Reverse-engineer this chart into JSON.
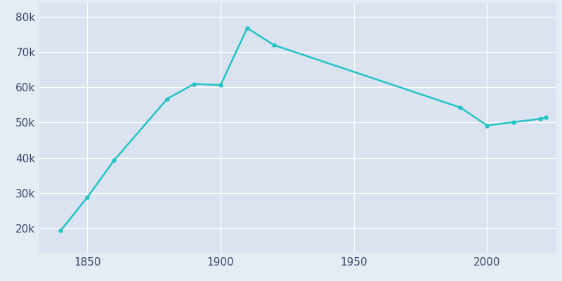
{
  "years": [
    1840,
    1850,
    1860,
    1880,
    1890,
    1900,
    1910,
    1920,
    1990,
    2000,
    2010,
    2020,
    2022
  ],
  "population": [
    19334,
    28785,
    39235,
    56747,
    60956,
    60651,
    76813,
    72013,
    54269,
    49170,
    50129,
    51058,
    51401
  ],
  "line_color": "#22c4c4",
  "marker_color": "#22c4c4",
  "bg_color": "#e4ecf4",
  "plot_bg_color": "#dae3ef",
  "grid_color": "#ffffff",
  "tick_label_color": "#3a4a6b",
  "tick_fontsize": 11,
  "line_width": 1.8,
  "marker_size": 3.5,
  "ylim": [
    13000,
    84000
  ],
  "xlim": [
    1832,
    2026
  ],
  "ytick_values": [
    20000,
    30000,
    40000,
    50000,
    60000,
    70000,
    80000
  ],
  "ytick_labels": [
    "20k",
    "30k",
    "40k",
    "50k",
    "60k",
    "70k",
    "80k"
  ],
  "xtick_values": [
    1850,
    1900,
    1950,
    2000
  ],
  "xtick_labels": [
    "1850",
    "1900",
    "1950",
    "2000"
  ]
}
